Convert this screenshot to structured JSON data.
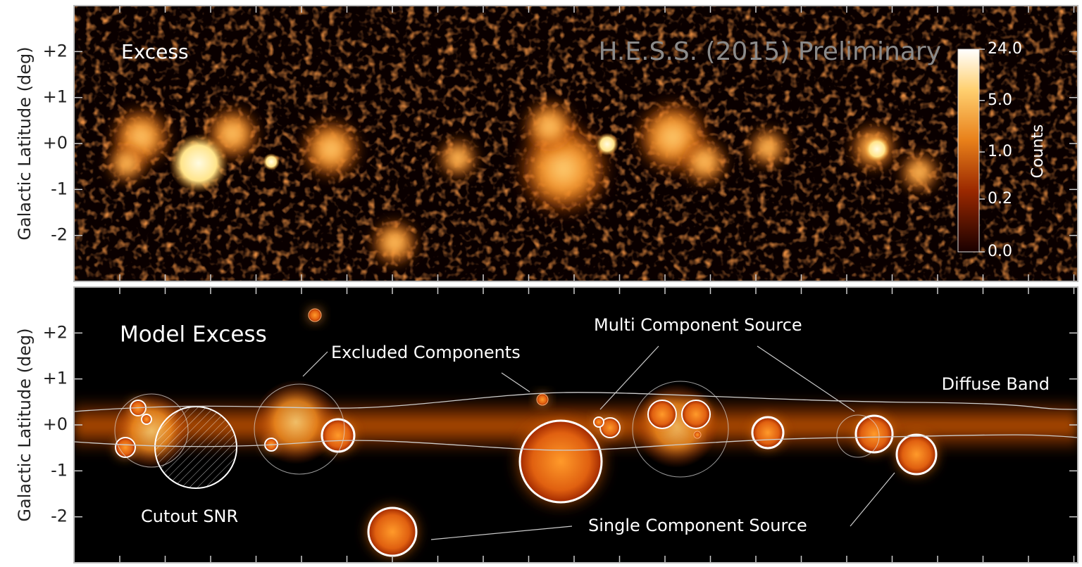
{
  "chart_data": [
    {
      "type": "heatmap",
      "panel_label": "Excess",
      "watermark": "H.E.S.S. (2015) Preliminary",
      "ylabel": "Galactic Latitude (deg)",
      "ylim": [
        -3,
        3
      ],
      "yticks": [
        {
          "value": 2,
          "label": "+2"
        },
        {
          "value": 1,
          "label": "+1"
        },
        {
          "value": 0,
          "label": "+0"
        },
        -1,
        -2
      ],
      "colorbar_label": "Counts",
      "colorbar_lim": [
        0,
        24
      ],
      "colorbar_ticks": [
        {
          "value": 24,
          "label": "24.0"
        },
        {
          "value": 5,
          "label": "5.0"
        },
        {
          "value": 1,
          "label": "1.0"
        },
        {
          "value": 0.2,
          "label": "0.2"
        },
        {
          "value": 0,
          "label": "0.0"
        }
      ]
    },
    {
      "type": "heatmap",
      "panel_label": "Model Excess",
      "ylabel": "Galactic Latitude (deg)",
      "ylim": [
        -3,
        3
      ],
      "yticks": [
        {
          "value": 2,
          "label": "+2"
        },
        {
          "value": 1,
          "label": "+1"
        },
        {
          "value": 0,
          "label": "+0"
        },
        -1,
        -2
      ],
      "annotations": [
        "Excluded Components",
        "Multi Component Source",
        "Diffuse Band",
        "Cutout SNR",
        "Single Component Source"
      ]
    }
  ]
}
